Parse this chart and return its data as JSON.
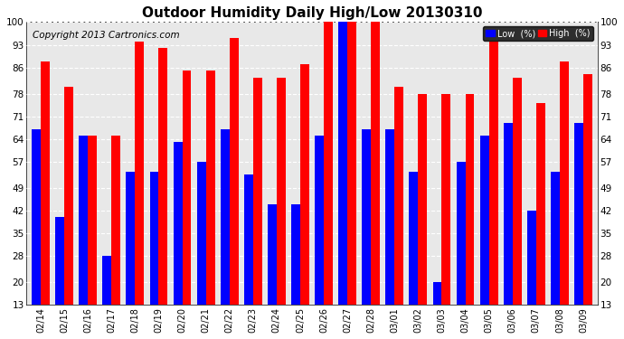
{
  "title": "Outdoor Humidity Daily High/Low 20130310",
  "copyright": "Copyright 2013 Cartronics.com",
  "categories": [
    "02/14",
    "02/15",
    "02/16",
    "02/17",
    "02/18",
    "02/19",
    "02/20",
    "02/21",
    "02/22",
    "02/23",
    "02/24",
    "02/25",
    "02/26",
    "02/27",
    "02/28",
    "03/01",
    "03/02",
    "03/03",
    "03/04",
    "03/05",
    "03/06",
    "03/07",
    "03/08",
    "03/09"
  ],
  "high_values": [
    88,
    80,
    65,
    65,
    94,
    92,
    85,
    85,
    95,
    83,
    83,
    87,
    100,
    100,
    100,
    80,
    78,
    78,
    78,
    94,
    83,
    75,
    88,
    84
  ],
  "low_values": [
    67,
    40,
    65,
    28,
    54,
    54,
    63,
    57,
    67,
    53,
    44,
    44,
    65,
    100,
    67,
    67,
    54,
    20,
    57,
    65,
    69,
    42,
    54,
    69
  ],
  "ylim_min": 13,
  "ylim_max": 100,
  "yticks": [
    13,
    20,
    28,
    35,
    42,
    49,
    57,
    64,
    71,
    78,
    86,
    93,
    100
  ],
  "bar_color_high": "#ff0000",
  "bar_color_low": "#0000ff",
  "bg_color": "#ffffff",
  "plot_bg_color": "#e8e8e8",
  "grid_color": "#ffffff",
  "legend_low_label": "Low  (%)",
  "legend_high_label": "High  (%)",
  "title_fontsize": 11,
  "copyright_fontsize": 7.5
}
